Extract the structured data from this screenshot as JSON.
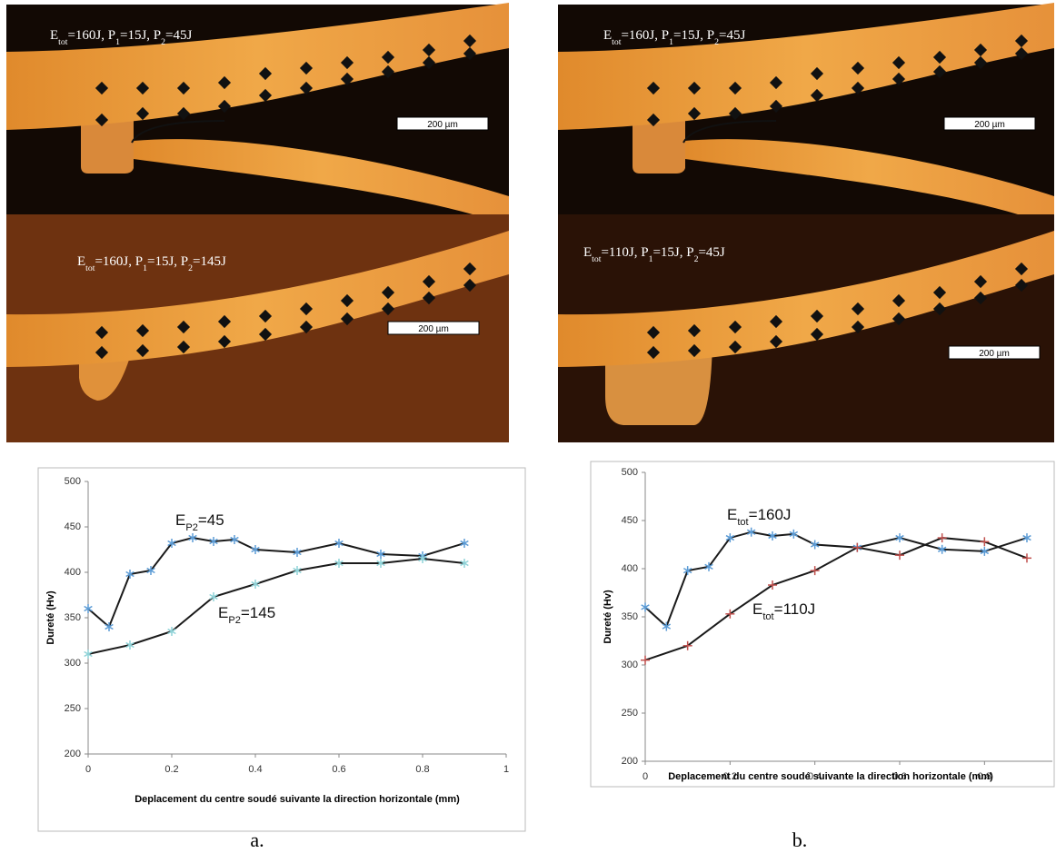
{
  "panels": [
    {
      "label": [
        {
          "text": "E"
        },
        {
          "text": "tot",
          "sub": true
        },
        {
          "text": "=160J, P"
        },
        {
          "text": "1",
          "sub": true
        },
        {
          "text": "=15J, P"
        },
        {
          "text": "2",
          "sub": true
        },
        {
          "text": "=45J"
        }
      ],
      "scale_bar": "200 µm"
    },
    {
      "label": [
        {
          "text": "E"
        },
        {
          "text": "tot",
          "sub": true
        },
        {
          "text": "=160J, P"
        },
        {
          "text": "1",
          "sub": true
        },
        {
          "text": "=15J, P"
        },
        {
          "text": "2",
          "sub": true
        },
        {
          "text": "=145J"
        }
      ],
      "scale_bar": "200 µm"
    },
    {
      "label": [
        {
          "text": "E"
        },
        {
          "text": "tot",
          "sub": true
        },
        {
          "text": "=160J, P"
        },
        {
          "text": "1",
          "sub": true
        },
        {
          "text": "=15J, P"
        },
        {
          "text": "2",
          "sub": true
        },
        {
          "text": "=45J"
        }
      ],
      "scale_bar": "200 µm"
    },
    {
      "label": [
        {
          "text": "E"
        },
        {
          "text": "tot",
          "sub": true
        },
        {
          "text": "=110J, P"
        },
        {
          "text": "1",
          "sub": true
        },
        {
          "text": "=15J, P"
        },
        {
          "text": "2",
          "sub": true
        },
        {
          "text": "=45J"
        }
      ],
      "scale_bar": "200 µm"
    }
  ],
  "chart_data": [
    {
      "type": "line",
      "y_label": "Dureté (Hv)",
      "x_label": "Deplacement du centre soudé suivante la direction horizontale (mm)",
      "xlim": [
        0,
        1
      ],
      "ylim": [
        200,
        500
      ],
      "xticks": [
        0,
        0.2,
        0.4,
        0.6,
        0.8,
        1
      ],
      "yticks": [
        200,
        250,
        300,
        350,
        400,
        450,
        500
      ],
      "series": [
        {
          "name": [
            {
              "text": "E"
            },
            {
              "text": "P2",
              "sub": true
            },
            {
              "text": "=45"
            }
          ],
          "color": "#1a1a1a",
          "marker": "asterisk",
          "marker_color": "#5b9bd5",
          "x": [
            0,
            0.05,
            0.1,
            0.15,
            0.2,
            0.25,
            0.3,
            0.35,
            0.4,
            0.5,
            0.6,
            0.7,
            0.8,
            0.9
          ],
          "values": [
            360,
            340,
            398,
            402,
            432,
            438,
            434,
            436,
            425,
            422,
            432,
            420,
            418,
            432
          ]
        },
        {
          "name": [
            {
              "text": "E"
            },
            {
              "text": "P2",
              "sub": true
            },
            {
              "text": "=145"
            }
          ],
          "color": "#1a1a1a",
          "marker": "asterisk",
          "marker_color": "#8fd3d8",
          "x": [
            0,
            0.1,
            0.2,
            0.3,
            0.4,
            0.5,
            0.6,
            0.7,
            0.8,
            0.9
          ],
          "values": [
            310,
            320,
            335,
            373,
            387,
            402,
            410,
            410,
            415,
            410
          ]
        }
      ]
    },
    {
      "type": "line",
      "y_label": "Dureté (Hv)",
      "x_label": "Deplacement du centre soudé suivante la direction horizontale (mm)",
      "xlim": [
        0,
        0.96
      ],
      "ylim": [
        200,
        500
      ],
      "xticks": [
        0,
        0.2,
        0.4,
        0.6,
        0.8
      ],
      "yticks": [
        200,
        250,
        300,
        350,
        400,
        450,
        500
      ],
      "series": [
        {
          "name": [
            {
              "text": "E"
            },
            {
              "text": "tot",
              "sub": true
            },
            {
              "text": "=160J"
            }
          ],
          "color": "#1a1a1a",
          "marker": "asterisk",
          "marker_color": "#5b9bd5",
          "x": [
            0,
            0.05,
            0.1,
            0.15,
            0.2,
            0.25,
            0.3,
            0.35,
            0.4,
            0.5,
            0.6,
            0.7,
            0.8,
            0.9
          ],
          "values": [
            360,
            340,
            398,
            402,
            432,
            438,
            434,
            436,
            425,
            422,
            432,
            420,
            418,
            432
          ]
        },
        {
          "name": [
            {
              "text": "E"
            },
            {
              "text": "tot",
              "sub": true
            },
            {
              "text": "=110J"
            }
          ],
          "color": "#1a1a1a",
          "marker": "plus",
          "marker_color": "#c0504d",
          "x": [
            0,
            0.1,
            0.2,
            0.3,
            0.4,
            0.5,
            0.6,
            0.7,
            0.8,
            0.9
          ],
          "values": [
            305,
            320,
            353,
            383,
            398,
            422,
            414,
            432,
            428,
            411
          ]
        }
      ]
    }
  ],
  "captions": [
    "a.",
    "b."
  ]
}
